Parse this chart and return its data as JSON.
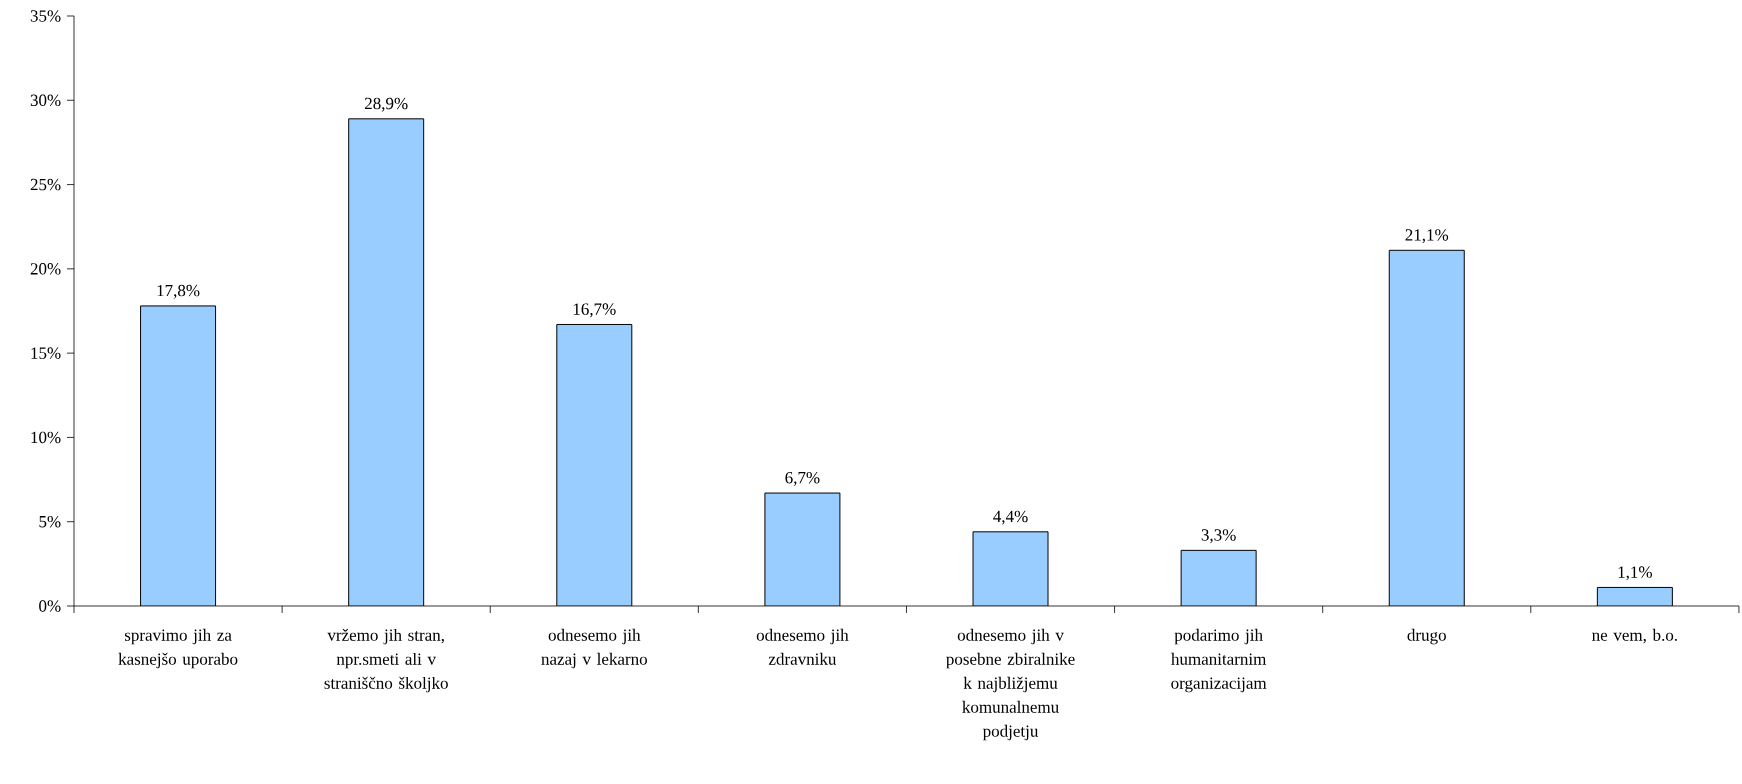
{
  "chart_data": {
    "type": "bar",
    "categories": [
      "spravimo jih za kasnejšo uporabo",
      "vržemo jih stran, npr.smeti ali v straniščno školjko",
      "odnesemo jih nazaj v lekarno",
      "odnesemo jih zdravniku",
      "odnesemo jih v posebne zbiralnike k najbližjemu komunalnemu podjetju",
      "podarimo jih humanitarnim organizacijam",
      "drugo",
      "ne vem, b.o."
    ],
    "values": [
      17.8,
      28.9,
      16.7,
      6.7,
      4.4,
      3.3,
      21.1,
      1.1
    ],
    "value_labels": [
      "17,8%",
      "28,9%",
      "16,7%",
      "6,7%",
      "4,4%",
      "3,3%",
      "21,1%",
      "1,1%"
    ],
    "color": "#99ccff",
    "ylim": [
      0,
      35
    ],
    "yticks": [
      {
        "value": 0,
        "label": "0%"
      },
      {
        "value": 5,
        "label": "5%"
      },
      {
        "value": 10,
        "label": "10%"
      },
      {
        "value": 15,
        "label": "15%"
      },
      {
        "value": 20,
        "label": "20%"
      },
      {
        "value": 25,
        "label": "25%"
      },
      {
        "value": 30,
        "label": "30%"
      },
      {
        "value": 35,
        "label": "35%"
      }
    ]
  }
}
